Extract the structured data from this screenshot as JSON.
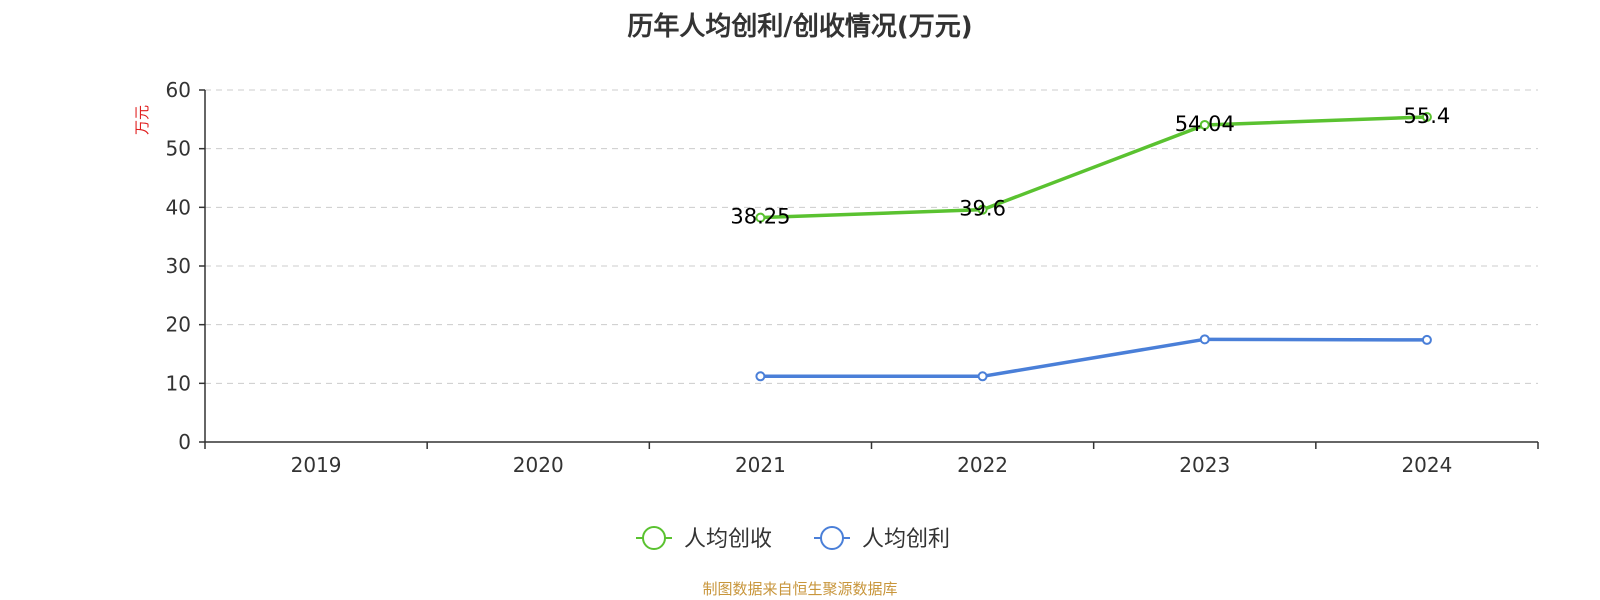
{
  "chart_data": {
    "type": "line",
    "title": "历年人均创利/创收情况(万元)",
    "ylabel": "万元",
    "xlabel": "",
    "categories": [
      "2019",
      "2020",
      "2021",
      "2022",
      "2023",
      "2024"
    ],
    "ylim": [
      0,
      60
    ],
    "yticks": [
      0,
      10,
      20,
      30,
      40,
      50,
      60
    ],
    "grid": true,
    "legend_position": "bottom",
    "series": [
      {
        "name": "人均创收",
        "color": "#5ac230",
        "values": [
          null,
          null,
          38.25,
          39.6,
          54.04,
          55.4
        ],
        "labels": [
          "",
          "",
          "38.25",
          "39.6",
          "54.04",
          "55.4"
        ]
      },
      {
        "name": "人均创利",
        "color": "#4a7fd8",
        "values": [
          null,
          null,
          11.2,
          11.2,
          17.5,
          17.4
        ],
        "labels": [
          "",
          "",
          "",
          "",
          "",
          ""
        ]
      }
    ]
  },
  "source": "制图数据来自恒生聚源数据库",
  "colors": {
    "ylabel": "#e02020",
    "axis": "#333333",
    "grid": "#cccccc"
  }
}
